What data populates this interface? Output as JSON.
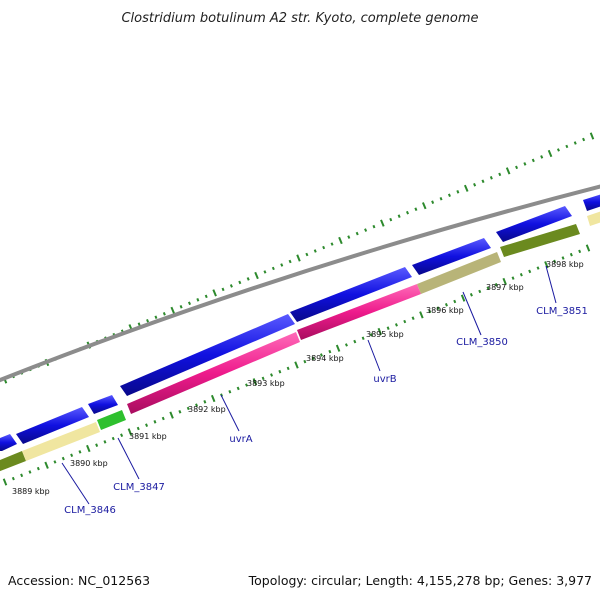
{
  "title": "Clostridium botulinum A2 str. Kyoto, complete genome",
  "footer": {
    "accession": "Accession: NC_012563",
    "summary": "Topology: circular; Length: 4,155,278 bp; Genes: 3,977"
  },
  "kbp_labels": [
    "3889 kbp",
    "3890 kbp",
    "3891 kbp",
    "3892 kbp",
    "3893 kbp",
    "3894 kbp",
    "3895 kbp",
    "3896 kbp",
    "3897 kbp",
    "3898 kbp"
  ],
  "gene_labels": [
    "CLM_3846",
    "CLM_3847",
    "uvrA",
    "uvrB",
    "CLM_3850",
    "CLM_3851"
  ],
  "colors": {
    "backbone": "#8c8c8c",
    "cds": "#1010e0",
    "uvr": "#ee1b8c",
    "pale": "#f0e6a0",
    "olive": "#6b8a1f",
    "khaki": "#b8b478",
    "green": "#2ec02e",
    "ticks": "#2d8a2d",
    "label_line": "#1a1aa0"
  }
}
